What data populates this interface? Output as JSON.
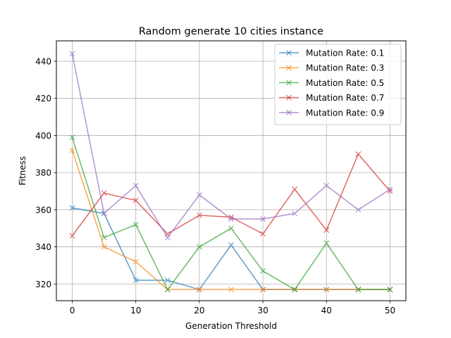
{
  "chart_data": {
    "type": "line",
    "title": "Random generate 10 cities instance",
    "xlabel": "Generation Threshold",
    "ylabel": "Fitness",
    "x": [
      0,
      5,
      10,
      15,
      20,
      25,
      30,
      35,
      40,
      45,
      50
    ],
    "xlim": [
      -2.5,
      52.5
    ],
    "ylim": [
      311,
      451
    ],
    "xticks": [
      0,
      10,
      20,
      30,
      40,
      50
    ],
    "yticks": [
      320,
      340,
      360,
      380,
      400,
      420,
      440
    ],
    "grid": true,
    "legend_position": "top-right",
    "marker": "x",
    "series": [
      {
        "name": "Mutation Rate: 0.1",
        "color": "#1f77b4",
        "values": [
          361,
          358,
          322,
          322,
          317,
          341,
          317,
          317,
          317,
          317,
          317
        ]
      },
      {
        "name": "Mutation Rate: 0.3",
        "color": "#ff7f0e",
        "values": [
          392,
          340,
          332,
          317,
          317,
          317,
          317,
          317,
          317,
          317,
          317
        ]
      },
      {
        "name": "Mutation Rate: 0.5",
        "color": "#2ca02c",
        "values": [
          399,
          345,
          352,
          317,
          340,
          350,
          327,
          317,
          342,
          317,
          317
        ]
      },
      {
        "name": "Mutation Rate: 0.7",
        "color": "#d62728",
        "values": [
          346,
          369,
          365,
          347,
          357,
          356,
          347,
          371,
          349,
          390,
          370
        ]
      },
      {
        "name": "Mutation Rate: 0.9",
        "color": "#9467bd",
        "values": [
          444,
          358,
          373,
          345,
          368,
          355,
          355,
          358,
          373,
          360,
          371
        ]
      }
    ]
  }
}
